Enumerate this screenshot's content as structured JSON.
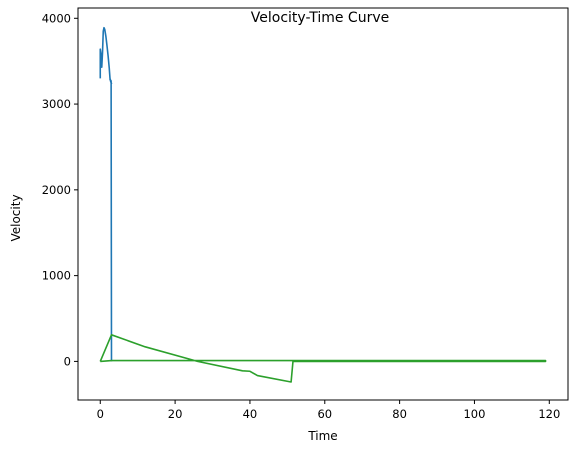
{
  "chart_data": {
    "type": "line",
    "title": "Velocity-Time Curve",
    "xlabel": "Time",
    "ylabel": "Velocity",
    "xlim": [
      -5.95,
      125
    ],
    "ylim": [
      -450,
      4120
    ],
    "xticks": [
      0,
      20,
      40,
      60,
      80,
      100,
      120
    ],
    "yticks": [
      0,
      1000,
      2000,
      3000,
      4000
    ],
    "grid": false,
    "legend": "none",
    "series": [
      {
        "color": "#1f77b4",
        "x": [
          0,
          0,
          0.2,
          0.4,
          0.6,
          0.8,
          1.0,
          1.2,
          1.5,
          1.8,
          2.1,
          2.4,
          2.6,
          2.8,
          3.0,
          2.6,
          2.9,
          3.0
        ],
        "y": [
          3300,
          3640,
          3580,
          3430,
          3600,
          3850,
          3890,
          3870,
          3790,
          3680,
          3560,
          3420,
          3300,
          3260,
          3240,
          3290,
          3270,
          0
        ]
      },
      {
        "color": "#2ca02c",
        "x": [
          0,
          3,
          12,
          26,
          38,
          40,
          42,
          51,
          51.5,
          51.5,
          119,
          119,
          3,
          0
        ],
        "y": [
          0,
          310,
          170,
          0,
          -110,
          -115,
          -165,
          -240,
          0,
          0,
          0,
          10,
          10,
          0
        ]
      }
    ]
  }
}
